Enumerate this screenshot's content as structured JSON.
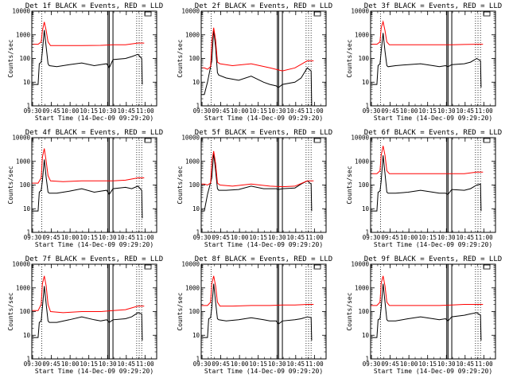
{
  "figure": {
    "xlabel": "Start Time (14-Dec-09 09:29:20)",
    "ylabel": "Counts/sec",
    "x_ticks": [
      "09:30",
      "09:45",
      "10:00",
      "10:15",
      "10:30",
      "10:45",
      "11:00"
    ],
    "y_ticks": [
      "1",
      "10",
      "100",
      "1000",
      "10000"
    ],
    "colors": {
      "events": "#000000",
      "lld": "#ff0000",
      "axes": "#000000"
    }
  },
  "chart_data": [
    {
      "type": "line",
      "title": "Det 1f BLACK = Events, RED = LLD",
      "yscale": "log",
      "ylim": [
        1,
        10000
      ],
      "series": [
        {
          "color": "#000000",
          "x": [
            0,
            2.5,
            5,
            6,
            7.5,
            8.5,
            10,
            11.5,
            13,
            14,
            20,
            30,
            40,
            50,
            55,
            60,
            62,
            65,
            75,
            80,
            85,
            88,
            88.5
          ],
          "y": [
            8,
            8,
            8,
            60,
            70,
            200,
            1600,
            300,
            60,
            50,
            45,
            55,
            65,
            50,
            55,
            60,
            40,
            90,
            100,
            120,
            150,
            100,
            8
          ]
        },
        {
          "color": "#ff0000",
          "x": [
            0,
            2.5,
            5,
            7.5,
            8.5,
            10,
            11.5,
            13,
            15,
            25,
            40,
            55,
            65,
            75,
            85,
            90
          ],
          "y": [
            400,
            400,
            400,
            500,
            1500,
            3500,
            1500,
            500,
            350,
            350,
            350,
            360,
            380,
            380,
            450,
            450
          ]
        }
      ]
    },
    {
      "type": "line",
      "title": "Det 2f BLACK = Events, RED = LLD",
      "yscale": "log",
      "ylim": [
        1,
        10000
      ],
      "series": [
        {
          "color": "#000000",
          "x": [
            0,
            2.5,
            5,
            8.5,
            10,
            11.5,
            13,
            14,
            20,
            30,
            40,
            50,
            55,
            60,
            62,
            65,
            75,
            80,
            85,
            88,
            88.5
          ],
          "y": [
            3,
            3,
            10,
            80,
            1700,
            300,
            25,
            20,
            15,
            12,
            18,
            10,
            8,
            7,
            6,
            8,
            10,
            15,
            40,
            30,
            1
          ]
        },
        {
          "color": "#ff0000",
          "x": [
            0,
            2.5,
            5,
            7.5,
            8.5,
            10,
            11.5,
            13,
            15,
            25,
            40,
            55,
            65,
            75,
            85,
            90
          ],
          "y": [
            40,
            40,
            35,
            45,
            500,
            2000,
            600,
            70,
            60,
            50,
            60,
            40,
            30,
            40,
            80,
            80
          ]
        }
      ]
    },
    {
      "type": "line",
      "title": "Det 3f BLACK = Events, RED = LLD",
      "yscale": "log",
      "ylim": [
        1,
        10000
      ],
      "series": [
        {
          "color": "#000000",
          "x": [
            0,
            2.5,
            5,
            6,
            7.5,
            8.5,
            10,
            11.5,
            13,
            14,
            20,
            30,
            40,
            50,
            55,
            60,
            62,
            65,
            75,
            80,
            85,
            88,
            88.5
          ],
          "y": [
            8,
            8,
            8,
            50,
            60,
            200,
            1200,
            200,
            50,
            45,
            50,
            55,
            60,
            50,
            45,
            50,
            45,
            55,
            60,
            70,
            100,
            80,
            6
          ]
        },
        {
          "color": "#ff0000",
          "x": [
            0,
            2.5,
            5,
            7.5,
            8.5,
            10,
            11.5,
            13,
            15,
            25,
            40,
            55,
            65,
            75,
            85,
            90
          ],
          "y": [
            400,
            400,
            400,
            500,
            2000,
            3600,
            1500,
            500,
            380,
            380,
            380,
            380,
            380,
            390,
            400,
            400
          ]
        }
      ]
    },
    {
      "type": "line",
      "title": "Det 4f BLACK = Events, RED = LLD",
      "yscale": "log",
      "ylim": [
        1,
        10000
      ],
      "series": [
        {
          "color": "#000000",
          "x": [
            0,
            2.5,
            5,
            6,
            7.5,
            8.5,
            10,
            11.5,
            13,
            14,
            20,
            30,
            40,
            50,
            55,
            60,
            62,
            65,
            75,
            80,
            85,
            88,
            88.5
          ],
          "y": [
            8,
            8,
            8,
            50,
            60,
            150,
            1200,
            200,
            50,
            45,
            45,
            55,
            70,
            50,
            55,
            60,
            40,
            70,
            80,
            70,
            90,
            60,
            4
          ]
        },
        {
          "color": "#ff0000",
          "x": [
            0,
            2.5,
            5,
            7.5,
            8.5,
            10,
            11.5,
            13,
            15,
            25,
            40,
            55,
            65,
            75,
            85,
            90
          ],
          "y": [
            120,
            120,
            120,
            200,
            1500,
            3500,
            1000,
            250,
            150,
            140,
            150,
            150,
            150,
            160,
            200,
            200
          ]
        }
      ]
    },
    {
      "type": "line",
      "title": "Det 5f BLACK = Events, RED = LLD",
      "yscale": "log",
      "ylim": [
        1,
        10000
      ],
      "series": [
        {
          "color": "#000000",
          "x": [
            0,
            2.5,
            5,
            8.5,
            10,
            11.5,
            13,
            14,
            20,
            30,
            40,
            50,
            55,
            60,
            62,
            65,
            75,
            80,
            85,
            88,
            88.5
          ],
          "y": [
            8,
            8,
            40,
            200,
            2300,
            400,
            70,
            60,
            60,
            65,
            90,
            70,
            70,
            70,
            65,
            70,
            75,
            110,
            150,
            110,
            8
          ]
        },
        {
          "color": "#ff0000",
          "x": [
            0,
            2.5,
            5,
            7.5,
            8.5,
            10,
            11.5,
            13,
            15,
            25,
            40,
            55,
            65,
            75,
            85,
            90
          ],
          "y": [
            110,
            110,
            100,
            120,
            1000,
            2700,
            800,
            120,
            100,
            90,
            110,
            90,
            85,
            90,
            150,
            150
          ]
        }
      ]
    },
    {
      "type": "line",
      "title": "Det 6f BLACK = Events, RED = LLD",
      "yscale": "log",
      "ylim": [
        1,
        10000
      ],
      "series": [
        {
          "color": "#000000",
          "x": [
            0,
            2.5,
            5,
            6,
            7.5,
            8.5,
            10,
            11.5,
            13,
            14,
            20,
            30,
            40,
            50,
            55,
            60,
            62,
            65,
            75,
            80,
            85,
            88,
            88.5
          ],
          "y": [
            8,
            8,
            8,
            50,
            55,
            150,
            1800,
            300,
            50,
            45,
            45,
            50,
            60,
            50,
            45,
            45,
            40,
            65,
            60,
            70,
            100,
            110,
            8
          ]
        },
        {
          "color": "#ff0000",
          "x": [
            0,
            2.5,
            5,
            7.5,
            8.5,
            10,
            11.5,
            13,
            15,
            25,
            40,
            55,
            65,
            75,
            85,
            90
          ],
          "y": [
            300,
            300,
            300,
            400,
            1800,
            4500,
            1800,
            400,
            300,
            300,
            300,
            300,
            300,
            300,
            350,
            350
          ]
        }
      ]
    },
    {
      "type": "line",
      "title": "Det 7f BLACK = Events, RED = LLD",
      "yscale": "log",
      "ylim": [
        1,
        10000
      ],
      "series": [
        {
          "color": "#000000",
          "x": [
            0,
            2.5,
            5,
            6,
            7.5,
            8.5,
            10,
            11.5,
            13,
            14,
            20,
            30,
            40,
            50,
            55,
            60,
            62,
            65,
            75,
            80,
            85,
            88,
            88.5
          ],
          "y": [
            8,
            8,
            8,
            35,
            40,
            150,
            1200,
            200,
            40,
            35,
            35,
            45,
            60,
            45,
            40,
            45,
            35,
            45,
            50,
            60,
            90,
            80,
            6
          ]
        },
        {
          "color": "#ff0000",
          "x": [
            0,
            2.5,
            5,
            7.5,
            8.5,
            10,
            11.5,
            13,
            15,
            25,
            40,
            55,
            65,
            75,
            85,
            90
          ],
          "y": [
            110,
            110,
            110,
            200,
            1500,
            3200,
            1200,
            200,
            100,
            90,
            100,
            100,
            110,
            120,
            170,
            170
          ]
        }
      ]
    },
    {
      "type": "line",
      "title": "Det 8f BLACK = Events, RED = LLD",
      "yscale": "log",
      "ylim": [
        1,
        10000
      ],
      "series": [
        {
          "color": "#000000",
          "x": [
            0,
            2.5,
            5,
            6,
            7.5,
            8.5,
            10,
            11.5,
            13,
            14,
            20,
            30,
            40,
            50,
            55,
            60,
            62,
            65,
            75,
            80,
            85,
            88,
            88.5
          ],
          "y": [
            8,
            8,
            8,
            50,
            55,
            150,
            1500,
            250,
            50,
            45,
            40,
            45,
            55,
            45,
            40,
            40,
            30,
            40,
            45,
            50,
            60,
            55,
            6
          ]
        },
        {
          "color": "#ff0000",
          "x": [
            0,
            2.5,
            5,
            7.5,
            8.5,
            10,
            11.5,
            13,
            15,
            25,
            40,
            55,
            65,
            75,
            85,
            90
          ],
          "y": [
            180,
            180,
            180,
            250,
            1500,
            3200,
            1200,
            250,
            170,
            170,
            180,
            180,
            190,
            190,
            200,
            200
          ]
        }
      ]
    },
    {
      "type": "line",
      "title": "Det 9f BLACK = Events, RED = LLD",
      "yscale": "log",
      "ylim": [
        1,
        10000
      ],
      "series": [
        {
          "color": "#000000",
          "x": [
            0,
            2.5,
            5,
            6,
            7.5,
            8.5,
            10,
            11.5,
            13,
            14,
            20,
            30,
            40,
            50,
            55,
            60,
            62,
            65,
            75,
            80,
            85,
            88,
            88.5
          ],
          "y": [
            8,
            8,
            8,
            45,
            50,
            150,
            1500,
            250,
            45,
            40,
            40,
            50,
            60,
            50,
            45,
            50,
            40,
            60,
            70,
            80,
            90,
            70,
            6
          ]
        },
        {
          "color": "#ff0000",
          "x": [
            0,
            2.5,
            5,
            7.5,
            8.5,
            10,
            11.5,
            13,
            15,
            25,
            40,
            55,
            65,
            75,
            85,
            90
          ],
          "y": [
            180,
            180,
            180,
            250,
            1600,
            3200,
            1200,
            250,
            180,
            180,
            180,
            180,
            190,
            200,
            200,
            200
          ]
        }
      ]
    }
  ]
}
